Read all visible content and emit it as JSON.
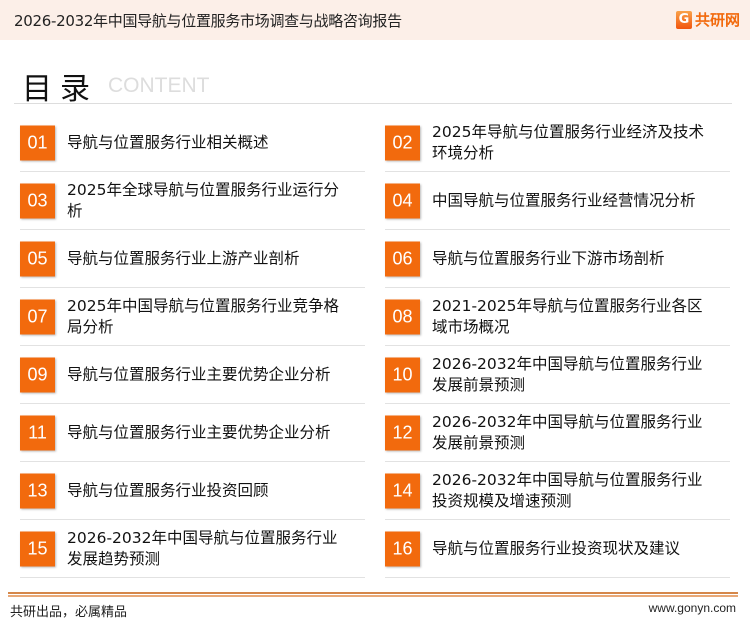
{
  "header": {
    "title": "2026-2032年中国导航与位置服务市场调查与战略咨询报告",
    "logo_text": "共研网"
  },
  "heading": {
    "title": "目录",
    "subtitle": "CONTENT"
  },
  "accent_color": "#F26A0D",
  "items": [
    {
      "num": "01",
      "text": "导航与位置服务行业相关概述"
    },
    {
      "num": "02",
      "text": "2025年导航与位置服务行业经济及技术环境分析"
    },
    {
      "num": "03",
      "text": "2025年全球导航与位置服务行业运行分析"
    },
    {
      "num": "04",
      "text": "中国导航与位置服务行业经营情况分析"
    },
    {
      "num": "05",
      "text": "导航与位置服务行业上游产业剖析"
    },
    {
      "num": "06",
      "text": "导航与位置服务行业下游市场剖析"
    },
    {
      "num": "07",
      "text": "2025年中国导航与位置服务行业竞争格局分析"
    },
    {
      "num": "08",
      "text": "2021-2025年导航与位置服务行业各区域市场概况"
    },
    {
      "num": "09",
      "text": "导航与位置服务行业主要优势企业分析"
    },
    {
      "num": "10",
      "text": "2026-2032年中国导航与位置服务行业发展前景预测"
    },
    {
      "num": "11",
      "text": "导航与位置服务行业主要优势企业分析"
    },
    {
      "num": "12",
      "text": "2026-2032年中国导航与位置服务行业发展前景预测"
    },
    {
      "num": "13",
      "text": "导航与位置服务行业投资回顾"
    },
    {
      "num": "14",
      "text": "2026-2032年中国导航与位置服务行业投资规模及增速预测"
    },
    {
      "num": "15",
      "text": "2026-2032年中国导航与位置服务行业发展趋势预测"
    },
    {
      "num": "16",
      "text": "导航与位置服务行业投资现状及建议"
    }
  ],
  "footer": {
    "slogan": "共研出品，必属精品",
    "url": "www.gonyn.com"
  }
}
